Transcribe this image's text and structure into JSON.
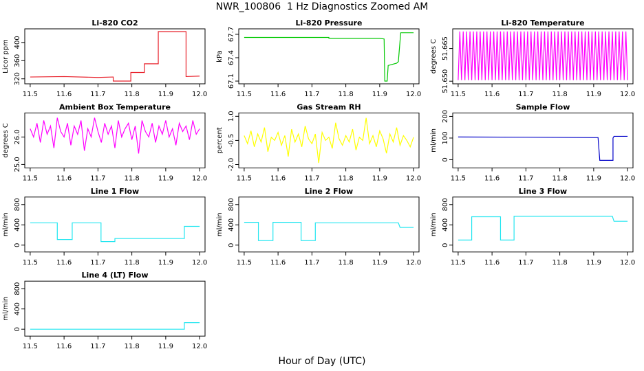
{
  "title": "NWR_100806  1 Hz Diagnostics Zoomed AM",
  "xlabel": "Hour of Day (UTC)",
  "chart_data": [
    {
      "type": "line",
      "title": "Li-820 CO2",
      "ylabel": "Licor ppm",
      "color": "#e8202a",
      "xlim": [
        11.484,
        12.016
      ],
      "xticks": [
        11.5,
        11.6,
        11.7,
        11.8,
        11.9,
        {
          "value": 12,
          "label": "12.0"
        }
      ],
      "ylim": [
        309,
        430
      ],
      "yticks": [
        320,
        360,
        400
      ],
      "x": [
        11.5,
        11.6,
        11.7,
        11.745,
        11.745,
        11.797,
        11.797,
        11.837,
        11.837,
        11.878,
        11.878,
        11.96,
        11.96,
        12.0
      ],
      "values": [
        324,
        325,
        323,
        324,
        315,
        315,
        334,
        334,
        353,
        353,
        424,
        424,
        325,
        326
      ]
    },
    {
      "type": "line",
      "title": "Li-820 Pressure",
      "ylabel": "kPa",
      "color": "#00c800",
      "xlim": [
        11.484,
        12.016
      ],
      "xticks": [
        11.5,
        11.6,
        11.7,
        11.8,
        11.9,
        {
          "value": 12,
          "label": "12.0"
        }
      ],
      "ylim": [
        67.065,
        67.77
      ],
      "yticks": [
        67.1,
        67.4,
        67.7
      ],
      "x": [
        11.5,
        11.75,
        11.75,
        11.9,
        11.913,
        11.915,
        11.922,
        11.925,
        11.95,
        11.955,
        11.962,
        11.965,
        12.0
      ],
      "values": [
        67.66,
        67.66,
        67.65,
        67.65,
        67.64,
        67.1,
        67.1,
        67.3,
        67.33,
        67.35,
        67.72,
        67.72,
        67.72
      ]
    },
    {
      "type": "line",
      "title": "Li-820 Temperature",
      "ylabel": "degrees C",
      "color": "#ff00ff",
      "xlim": [
        11.484,
        12.016
      ],
      "xticks": [
        11.5,
        11.6,
        11.7,
        11.8,
        11.9,
        {
          "value": 12,
          "label": "12.0"
        }
      ],
      "ylim": [
        51.6488,
        51.674
      ],
      "yticks": [
        {
          "value": 51.65,
          "label": "51.650"
        },
        51.665
      ],
      "x": [
        11.5,
        11.505,
        11.51,
        11.515,
        11.52,
        11.525,
        11.53,
        11.535,
        11.54,
        11.545,
        11.55,
        11.555,
        11.56,
        11.565,
        11.57,
        11.575,
        11.58,
        11.585,
        11.59,
        11.595,
        11.6,
        11.605,
        11.61,
        11.615,
        11.62,
        11.625,
        11.63,
        11.635,
        11.64,
        11.645,
        11.65,
        11.655,
        11.66,
        11.665,
        11.67,
        11.675,
        11.68,
        11.685,
        11.69,
        11.695,
        11.7,
        11.705,
        11.71,
        11.715,
        11.72,
        11.725,
        11.73,
        11.735,
        11.74,
        11.745,
        11.75,
        11.755,
        11.76,
        11.765,
        11.77,
        11.775,
        11.78,
        11.785,
        11.79,
        11.795,
        11.8,
        11.805,
        11.81,
        11.815,
        11.82,
        11.825,
        11.83,
        11.835,
        11.84,
        11.845,
        11.85,
        11.855,
        11.86,
        11.865,
        11.87,
        11.875,
        11.88,
        11.885,
        11.89,
        11.895,
        11.9,
        11.905,
        11.91,
        11.915,
        11.92,
        11.925,
        11.93,
        11.935,
        11.94,
        11.945,
        11.95,
        11.955,
        11.96,
        11.965,
        11.97,
        11.975,
        11.98,
        11.985,
        11.99,
        11.995,
        12.0
      ],
      "values": [
        51.6505,
        51.6728,
        51.6505,
        51.6728,
        51.6505,
        51.6728,
        51.6505,
        51.6728,
        51.6505,
        51.6728,
        51.6505,
        51.6728,
        51.6505,
        51.6728,
        51.6505,
        51.6728,
        51.6505,
        51.6728,
        51.6505,
        51.6728,
        51.6505,
        51.6728,
        51.6505,
        51.6728,
        51.6505,
        51.6728,
        51.6505,
        51.6728,
        51.6505,
        51.6728,
        51.6505,
        51.6728,
        51.6505,
        51.6728,
        51.6505,
        51.6728,
        51.6505,
        51.6728,
        51.6505,
        51.6728,
        51.6505,
        51.6728,
        51.6505,
        51.6728,
        51.6505,
        51.6728,
        51.6505,
        51.6728,
        51.6505,
        51.6728,
        51.6505,
        51.6728,
        51.6505,
        51.6728,
        51.6505,
        51.6728,
        51.6505,
        51.6728,
        51.6505,
        51.6728,
        51.6505,
        51.6728,
        51.6505,
        51.6728,
        51.6505,
        51.6728,
        51.6505,
        51.6728,
        51.6505,
        51.6728,
        51.6505,
        51.6728,
        51.6505,
        51.6728,
        51.6505,
        51.6728,
        51.6505,
        51.6728,
        51.6505,
        51.6728,
        51.6505,
        51.6728,
        51.6505,
        51.6728,
        51.6505,
        51.6728,
        51.6505,
        51.6728,
        51.6505,
        51.6728,
        51.6505,
        51.6728,
        51.6505,
        51.6728,
        51.6505,
        51.6728,
        51.6505,
        51.6728,
        51.6505,
        51.6728,
        51.6505
      ]
    },
    {
      "type": "line",
      "title": "Ambient Box Temperature",
      "ylabel": "degrees C",
      "color": "#ff00ff",
      "xlim": [
        11.484,
        12.016
      ],
      "xticks": [
        11.5,
        11.6,
        11.7,
        11.8,
        11.9,
        {
          "value": 12,
          "label": "12.0"
        }
      ],
      "ylim": [
        24.875,
        26.875
      ],
      "yticks": [
        {
          "value": 25,
          "label": "25.0"
        },
        {
          "value": 26,
          "label": "26.0"
        }
      ],
      "x": [
        11.5,
        11.51,
        11.52,
        11.53,
        11.54,
        11.55,
        11.56,
        11.57,
        11.58,
        11.59,
        11.6,
        11.61,
        11.62,
        11.63,
        11.64,
        11.65,
        11.66,
        11.67,
        11.68,
        11.69,
        11.7,
        11.71,
        11.72,
        11.73,
        11.74,
        11.75,
        11.76,
        11.77,
        11.78,
        11.79,
        11.8,
        11.81,
        11.82,
        11.83,
        11.84,
        11.85,
        11.86,
        11.87,
        11.88,
        11.89,
        11.9,
        11.91,
        11.92,
        11.93,
        11.94,
        11.95,
        11.96,
        11.97,
        11.98,
        11.99,
        12.0
      ],
      "values": [
        26.3,
        26.0,
        26.5,
        25.8,
        26.6,
        26.1,
        26.4,
        25.6,
        26.7,
        26.2,
        26.0,
        26.5,
        25.7,
        26.4,
        26.1,
        26.6,
        25.5,
        26.3,
        26.0,
        26.7,
        26.2,
        25.8,
        26.5,
        26.1,
        26.4,
        25.6,
        26.6,
        26.0,
        26.3,
        26.5,
        25.9,
        26.4,
        25.4,
        26.6,
        26.2,
        26.0,
        26.5,
        25.8,
        26.4,
        26.1,
        26.6,
        26.0,
        26.3,
        25.7,
        26.5,
        26.2,
        26.4,
        25.9,
        26.6,
        26.1,
        26.3
      ]
    },
    {
      "type": "line",
      "title": "Gas Stream RH",
      "ylabel": "percent",
      "color": "#ffff00",
      "xlim": [
        11.484,
        12.016
      ],
      "xticks": [
        11.5,
        11.6,
        11.7,
        11.8,
        11.9,
        {
          "value": 12,
          "label": "12.0"
        }
      ],
      "ylim": [
        -2.21,
        1.21
      ],
      "yticks": [
        {
          "value": 1,
          "label": "1.0"
        },
        -0.5,
        {
          "value": -2,
          "label": "-2.0"
        }
      ],
      "x": [
        11.5,
        11.51,
        11.52,
        11.53,
        11.54,
        11.55,
        11.56,
        11.57,
        11.58,
        11.59,
        11.6,
        11.61,
        11.62,
        11.63,
        11.64,
        11.65,
        11.66,
        11.67,
        11.68,
        11.69,
        11.7,
        11.71,
        11.72,
        11.73,
        11.74,
        11.75,
        11.76,
        11.77,
        11.78,
        11.79,
        11.8,
        11.81,
        11.82,
        11.83,
        11.84,
        11.85,
        11.86,
        11.87,
        11.88,
        11.89,
        11.9,
        11.91,
        11.92,
        11.93,
        11.94,
        11.95,
        11.96,
        11.97,
        11.98,
        11.99,
        12.0
      ],
      "values": [
        -0.2,
        -0.7,
        0.1,
        -0.9,
        -0.1,
        -0.6,
        0.3,
        -1.2,
        -0.3,
        -0.5,
        0.0,
        -0.8,
        -0.2,
        -1.5,
        0.2,
        -0.6,
        -0.1,
        -0.9,
        0.4,
        -0.4,
        -0.7,
        -0.1,
        -1.9,
        0.0,
        -0.5,
        -0.3,
        -1.0,
        0.6,
        -0.4,
        -0.8,
        -0.2,
        -0.6,
        0.2,
        -1.1,
        -0.3,
        -0.5,
        0.9,
        -0.7,
        -0.2,
        -0.9,
        0.1,
        -0.4,
        -1.3,
        -0.1,
        -0.6,
        0.3,
        -0.8,
        -0.2,
        -0.5,
        -0.9,
        -0.3
      ]
    },
    {
      "type": "line",
      "title": "Sample Flow",
      "ylabel": "ml/min",
      "color": "#0000c8",
      "xlim": [
        11.484,
        12.016
      ],
      "xticks": [
        11.5,
        11.6,
        11.7,
        11.8,
        11.9,
        {
          "value": 12,
          "label": "12.0"
        }
      ],
      "ylim": [
        -38,
        216
      ],
      "yticks": [
        0,
        100,
        200
      ],
      "x": [
        11.5,
        11.7,
        11.913,
        11.913,
        11.918,
        11.957,
        11.957,
        11.96,
        12.0
      ],
      "values": [
        105,
        104,
        102,
        100,
        -3,
        -3,
        100,
        108,
        108
      ]
    },
    {
      "type": "line",
      "title": "Line 1 Flow",
      "ylabel": "ml/min",
      "color": "#22e6f0",
      "xlim": [
        11.484,
        12.016
      ],
      "xticks": [
        11.5,
        11.6,
        11.7,
        11.8,
        11.9,
        {
          "value": 12,
          "label": "12.0"
        }
      ],
      "ylim": [
        -136,
        949
      ],
      "yticks": [
        0,
        400,
        800
      ],
      "x": [
        11.5,
        11.58,
        11.58,
        11.624,
        11.624,
        11.709,
        11.709,
        11.75,
        11.75,
        11.955,
        11.955,
        12.0
      ],
      "values": [
        440,
        440,
        110,
        110,
        440,
        440,
        70,
        70,
        130,
        130,
        370,
        370
      ]
    },
    {
      "type": "line",
      "title": "Line 2 Flow",
      "ylabel": "ml/min",
      "color": "#22e6f0",
      "xlim": [
        11.484,
        12.016
      ],
      "xticks": [
        11.5,
        11.6,
        11.7,
        11.8,
        11.9,
        {
          "value": 12,
          "label": "12.0"
        }
      ],
      "ylim": [
        -136,
        949
      ],
      "yticks": [
        0,
        400,
        800
      ],
      "x": [
        11.5,
        11.542,
        11.542,
        11.585,
        11.585,
        11.668,
        11.668,
        11.71,
        11.71,
        11.955,
        11.96,
        12.0
      ],
      "values": [
        450,
        450,
        90,
        90,
        450,
        450,
        90,
        90,
        440,
        440,
        350,
        350
      ]
    },
    {
      "type": "line",
      "title": "Line 3 Flow",
      "ylabel": "ml/min",
      "color": "#22e6f0",
      "xlim": [
        11.484,
        12.016
      ],
      "xticks": [
        11.5,
        11.6,
        11.7,
        11.8,
        11.9,
        {
          "value": 12,
          "label": "12.0"
        }
      ],
      "ylim": [
        -136,
        949
      ],
      "yticks": [
        0,
        400,
        800
      ],
      "x": [
        11.5,
        11.54,
        11.54,
        11.625,
        11.625,
        11.665,
        11.665,
        11.955,
        11.96,
        12.0
      ],
      "values": [
        100,
        100,
        560,
        560,
        100,
        100,
        570,
        570,
        470,
        470
      ]
    },
    {
      "type": "line",
      "title": "Line 4 (LT) Flow",
      "ylabel": "ml/min",
      "color": "#22e6f0",
      "xlim": [
        11.484,
        12.016
      ],
      "xticks": [
        11.5,
        11.6,
        11.7,
        11.8,
        11.9,
        {
          "value": 12,
          "label": "12.0"
        }
      ],
      "ylim": [
        -136,
        949
      ],
      "yticks": [
        0,
        400,
        800
      ],
      "x": [
        11.5,
        11.955,
        11.955,
        12.0
      ],
      "values": [
        0,
        0,
        130,
        130
      ]
    }
  ]
}
